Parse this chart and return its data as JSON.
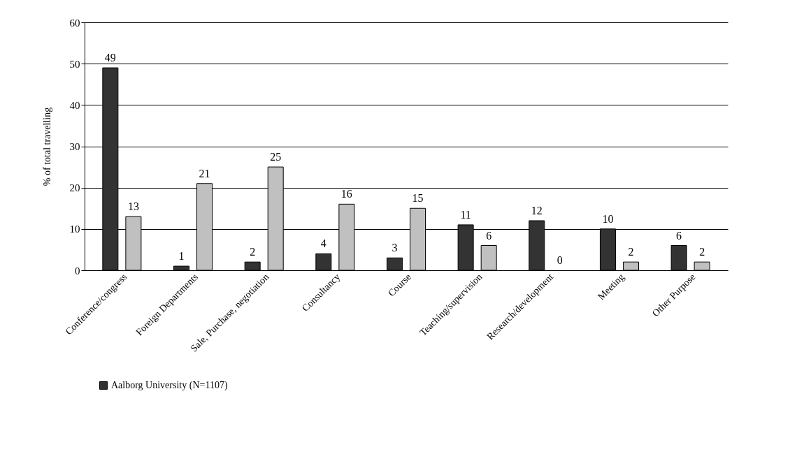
{
  "chart_data": {
    "type": "bar",
    "ylabel": "% of total travelling",
    "categories": [
      "Conference/congress",
      "Foreign Departments",
      "Sale, Purchase, negotiation",
      "Consultancy",
      "Course",
      "Teaching/supervision",
      "Research/development",
      "Meeting",
      "Other Purpose"
    ],
    "series": [
      {
        "name": "Aalborg University (N=1107)",
        "color": "#333333",
        "values": [
          49,
          1,
          2,
          4,
          3,
          11,
          12,
          10,
          6
        ]
      },
      {
        "color": "#c0c0c0",
        "values": [
          13,
          21,
          25,
          16,
          15,
          6,
          0,
          2,
          2
        ]
      }
    ],
    "ylim": [
      0,
      60
    ],
    "yticks": [
      0,
      10,
      20,
      30,
      40,
      50,
      60
    ],
    "grid": "y",
    "legend": "bottom",
    "data_labels": true
  }
}
